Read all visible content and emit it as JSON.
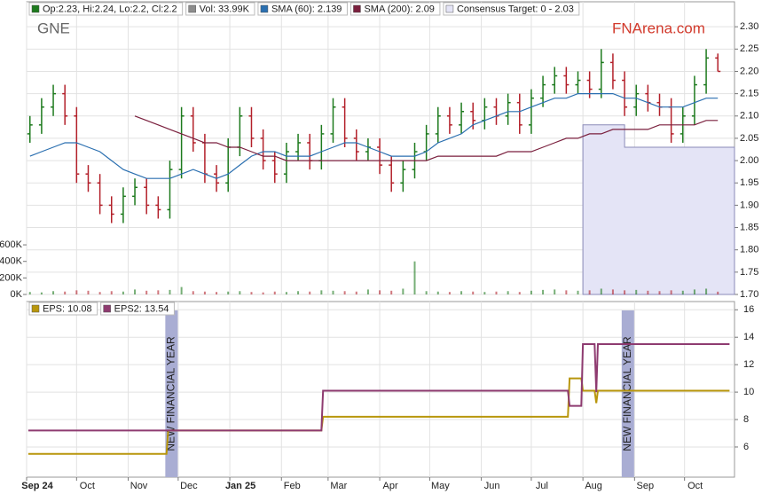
{
  "chart_data": [
    {
      "type": "candlestick",
      "title": "GNE",
      "watermark": "FNArena.com",
      "xlim": [
        0,
        425
      ],
      "ylim": [
        1.7,
        2.356
      ],
      "yticks": [
        {
          "value": 1.7,
          "label": "1.70"
        },
        1.75,
        {
          "value": 1.8,
          "label": "1.80"
        },
        1.85,
        {
          "value": 1.9,
          "label": "1.90"
        },
        1.95,
        {
          "value": 2.0,
          "label": "2.00"
        },
        2.05,
        {
          "value": 2.1,
          "label": "2.10"
        },
        2.15,
        {
          "value": 2.2,
          "label": "2.20"
        },
        2.25,
        {
          "value": 2.3,
          "label": "2.30"
        }
      ],
      "y2lim": [
        0,
        3540000
      ],
      "y2ticks": [
        {
          "value": 0,
          "label": "0K"
        },
        {
          "value": 200000,
          "label": "200K"
        },
        {
          "value": 400000,
          "label": "400K"
        },
        {
          "value": 600000,
          "label": "600K"
        }
      ],
      "grid": true,
      "x": [
        2,
        9,
        16,
        23,
        30,
        37,
        44,
        51,
        58,
        65,
        72,
        79,
        86,
        93,
        100,
        107,
        114,
        121,
        128,
        135,
        142,
        149,
        156,
        163,
        170,
        177,
        184,
        191,
        198,
        205,
        212,
        219,
        226,
        233,
        240,
        247,
        254,
        261,
        268,
        275,
        282,
        289,
        296,
        303,
        310,
        317,
        324,
        331,
        338,
        345,
        352,
        359,
        366,
        373,
        380,
        387,
        394,
        401,
        408,
        415
      ],
      "series": [
        {
          "name": "Op:2.23, Hi:2.24, Lo:2.2, Cl:2.2",
          "color": "#1d7a1d",
          "down_color": "#b3202a",
          "open": [
            2.06,
            2.08,
            2.12,
            2.15,
            2.1,
            1.97,
            1.95,
            1.9,
            1.88,
            1.92,
            1.94,
            1.9,
            1.89,
            1.98,
            2.1,
            2.04,
            1.97,
            1.95,
            2.03,
            2.1,
            2.05,
            2.0,
            1.97,
            2.02,
            2.04,
            2.0,
            2.06,
            2.12,
            2.05,
            2.02,
            2.03,
            1.99,
            1.95,
            1.98,
            2.02,
            2.06,
            2.1,
            2.08,
            2.11,
            2.09,
            2.12,
            2.1,
            2.13,
            2.08,
            2.14,
            2.17,
            2.19,
            2.17,
            2.18,
            2.16,
            2.22,
            2.18,
            2.12,
            2.15,
            2.13,
            2.12,
            2.06,
            2.1,
            2.17,
            2.23
          ],
          "high": [
            2.1,
            2.14,
            2.17,
            2.17,
            2.12,
            1.99,
            1.97,
            1.92,
            1.94,
            1.96,
            1.96,
            1.92,
            2.0,
            2.12,
            2.12,
            2.06,
            1.99,
            2.05,
            2.12,
            2.12,
            2.07,
            2.02,
            2.04,
            2.06,
            2.06,
            2.08,
            2.14,
            2.14,
            2.07,
            2.05,
            2.05,
            2.01,
            2.0,
            2.04,
            2.08,
            2.12,
            2.12,
            2.13,
            2.13,
            2.14,
            2.14,
            2.15,
            2.15,
            2.16,
            2.19,
            2.21,
            2.21,
            2.2,
            2.2,
            2.25,
            2.24,
            2.2,
            2.17,
            2.17,
            2.15,
            2.14,
            2.12,
            2.19,
            2.25,
            2.24
          ],
          "low": [
            2.04,
            2.06,
            2.1,
            2.08,
            1.95,
            1.93,
            1.88,
            1.86,
            1.86,
            1.9,
            1.88,
            1.87,
            1.87,
            1.96,
            2.02,
            1.95,
            1.93,
            1.93,
            2.01,
            2.03,
            1.98,
            1.95,
            1.95,
            2.0,
            1.98,
            1.98,
            2.04,
            2.03,
            2.0,
            2.0,
            1.97,
            1.93,
            1.93,
            1.96,
            2.0,
            2.04,
            2.06,
            2.06,
            2.07,
            2.07,
            2.08,
            2.08,
            2.06,
            2.06,
            2.12,
            2.15,
            2.15,
            2.15,
            2.14,
            2.14,
            2.16,
            2.1,
            2.1,
            2.11,
            2.1,
            2.04,
            2.04,
            2.08,
            2.15,
            2.2
          ],
          "close": [
            2.08,
            2.12,
            2.15,
            2.1,
            1.97,
            1.95,
            1.9,
            1.88,
            1.92,
            1.94,
            1.9,
            1.89,
            1.98,
            2.1,
            2.04,
            1.97,
            1.95,
            2.03,
            2.1,
            2.05,
            2.0,
            1.97,
            2.02,
            2.04,
            2.0,
            2.06,
            2.12,
            2.05,
            2.02,
            2.03,
            1.99,
            1.95,
            1.98,
            2.02,
            2.06,
            2.1,
            2.08,
            2.11,
            2.09,
            2.12,
            2.1,
            2.13,
            2.08,
            2.14,
            2.17,
            2.19,
            2.17,
            2.18,
            2.16,
            2.22,
            2.18,
            2.12,
            2.15,
            2.13,
            2.12,
            2.06,
            2.1,
            2.17,
            2.23,
            2.2
          ]
        },
        {
          "name": "Vol: 33.99K",
          "color": "#8c8c8c",
          "axis": "y2",
          "values": [
            30000,
            25000,
            40000,
            35000,
            50000,
            45000,
            30000,
            40000,
            35000,
            60000,
            45000,
            50000,
            55000,
            90000,
            40000,
            35000,
            30000,
            35000,
            40000,
            30000,
            25000,
            35000,
            30000,
            40000,
            35000,
            50000,
            45000,
            40000,
            35000,
            60000,
            50000,
            45000,
            70000,
            400000,
            40000,
            35000,
            30000,
            40000,
            35000,
            30000,
            35000,
            40000,
            30000,
            45000,
            55000,
            60000,
            50000,
            45000,
            50000,
            70000,
            60000,
            50000,
            55000,
            45000,
            40000,
            50000,
            45000,
            60000,
            70000,
            33990
          ]
        },
        {
          "name": "SMA (60): 2.139",
          "color": "#2a6fb0",
          "values": [
            2.01,
            2.02,
            2.03,
            2.04,
            2.04,
            2.03,
            2.02,
            2.0,
            1.98,
            1.97,
            1.96,
            1.96,
            1.96,
            1.97,
            1.98,
            1.97,
            1.96,
            1.97,
            1.99,
            2.01,
            2.02,
            2.02,
            2.01,
            2.01,
            2.01,
            2.02,
            2.03,
            2.04,
            2.04,
            2.03,
            2.02,
            2.01,
            2.01,
            2.01,
            2.02,
            2.04,
            2.05,
            2.06,
            2.08,
            2.09,
            2.1,
            2.11,
            2.11,
            2.12,
            2.13,
            2.14,
            2.14,
            2.15,
            2.15,
            2.15,
            2.15,
            2.14,
            2.14,
            2.13,
            2.12,
            2.12,
            2.12,
            2.13,
            2.14,
            2.14
          ]
        },
        {
          "name": "SMA (200): 2.09",
          "color": "#7a1f3d",
          "values": [
            null,
            null,
            null,
            null,
            null,
            null,
            null,
            null,
            null,
            2.1,
            2.09,
            2.08,
            2.07,
            2.06,
            2.05,
            2.04,
            2.04,
            2.03,
            2.03,
            2.02,
            2.01,
            2.01,
            2.0,
            2.0,
            2.0,
            2.0,
            2.0,
            2.0,
            2.0,
            2.0,
            2.0,
            2.0,
            2.0,
            2.0,
            2.0,
            2.01,
            2.01,
            2.01,
            2.01,
            2.01,
            2.01,
            2.02,
            2.02,
            2.02,
            2.03,
            2.04,
            2.05,
            2.05,
            2.06,
            2.06,
            2.07,
            2.07,
            2.07,
            2.07,
            2.08,
            2.08,
            2.08,
            2.08,
            2.09,
            2.09
          ]
        },
        {
          "name": "Consensus Target: 0 - 2.03",
          "color": "#e4e4f6",
          "edge_color": "#8a8ab8",
          "x": [
            334,
            359,
            359,
            425
          ],
          "values": [
            2.08,
            2.08,
            2.03,
            2.03
          ]
        }
      ]
    },
    {
      "type": "line",
      "xlim": [
        0,
        425
      ],
      "ylim": [
        3.8,
        16.6
      ],
      "yticks": [
        6,
        8,
        10,
        12,
        14,
        16
      ],
      "grid": true,
      "xticks": [
        {
          "value": 0,
          "label": "Sep 24"
        },
        {
          "value": 30,
          "label": "Oct"
        },
        {
          "value": 61,
          "label": "Nov"
        },
        {
          "value": 91,
          "label": "Dec"
        },
        {
          "value": 122,
          "label": "Jan 25"
        },
        {
          "value": 153,
          "label": "Feb"
        },
        {
          "value": 181,
          "label": "Mar"
        },
        {
          "value": 212,
          "label": "Apr"
        },
        {
          "value": 242,
          "label": "May"
        },
        {
          "value": 273,
          "label": "Jun"
        },
        {
          "value": 303,
          "label": "Jul"
        },
        {
          "value": 334,
          "label": "Aug"
        },
        {
          "value": 365,
          "label": "Sep"
        },
        {
          "value": 395,
          "label": "Oct"
        }
      ],
      "x": [
        1,
        84,
        85,
        177,
        178,
        325,
        326,
        333,
        334,
        341,
        342,
        343,
        422
      ],
      "series": [
        {
          "name": "EPS: 10.08",
          "color": "#b8960c",
          "values": [
            5.5,
            5.5,
            7.2,
            7.2,
            8.2,
            8.2,
            11,
            11,
            10.1,
            10.1,
            9.2,
            10.1,
            10.1
          ]
        },
        {
          "name": "EPS2: 13.54",
          "color": "#8e3b70",
          "values": [
            7.2,
            7.2,
            7.2,
            7.2,
            10.1,
            10.1,
            9,
            9,
            13.5,
            13.5,
            10,
            13.5,
            13.5
          ]
        }
      ],
      "annotations": [
        {
          "text": "NEW FINANCIAL YEAR",
          "x": 87
        },
        {
          "text": "NEW FINANCIAL YEAR",
          "x": 361
        }
      ]
    }
  ]
}
